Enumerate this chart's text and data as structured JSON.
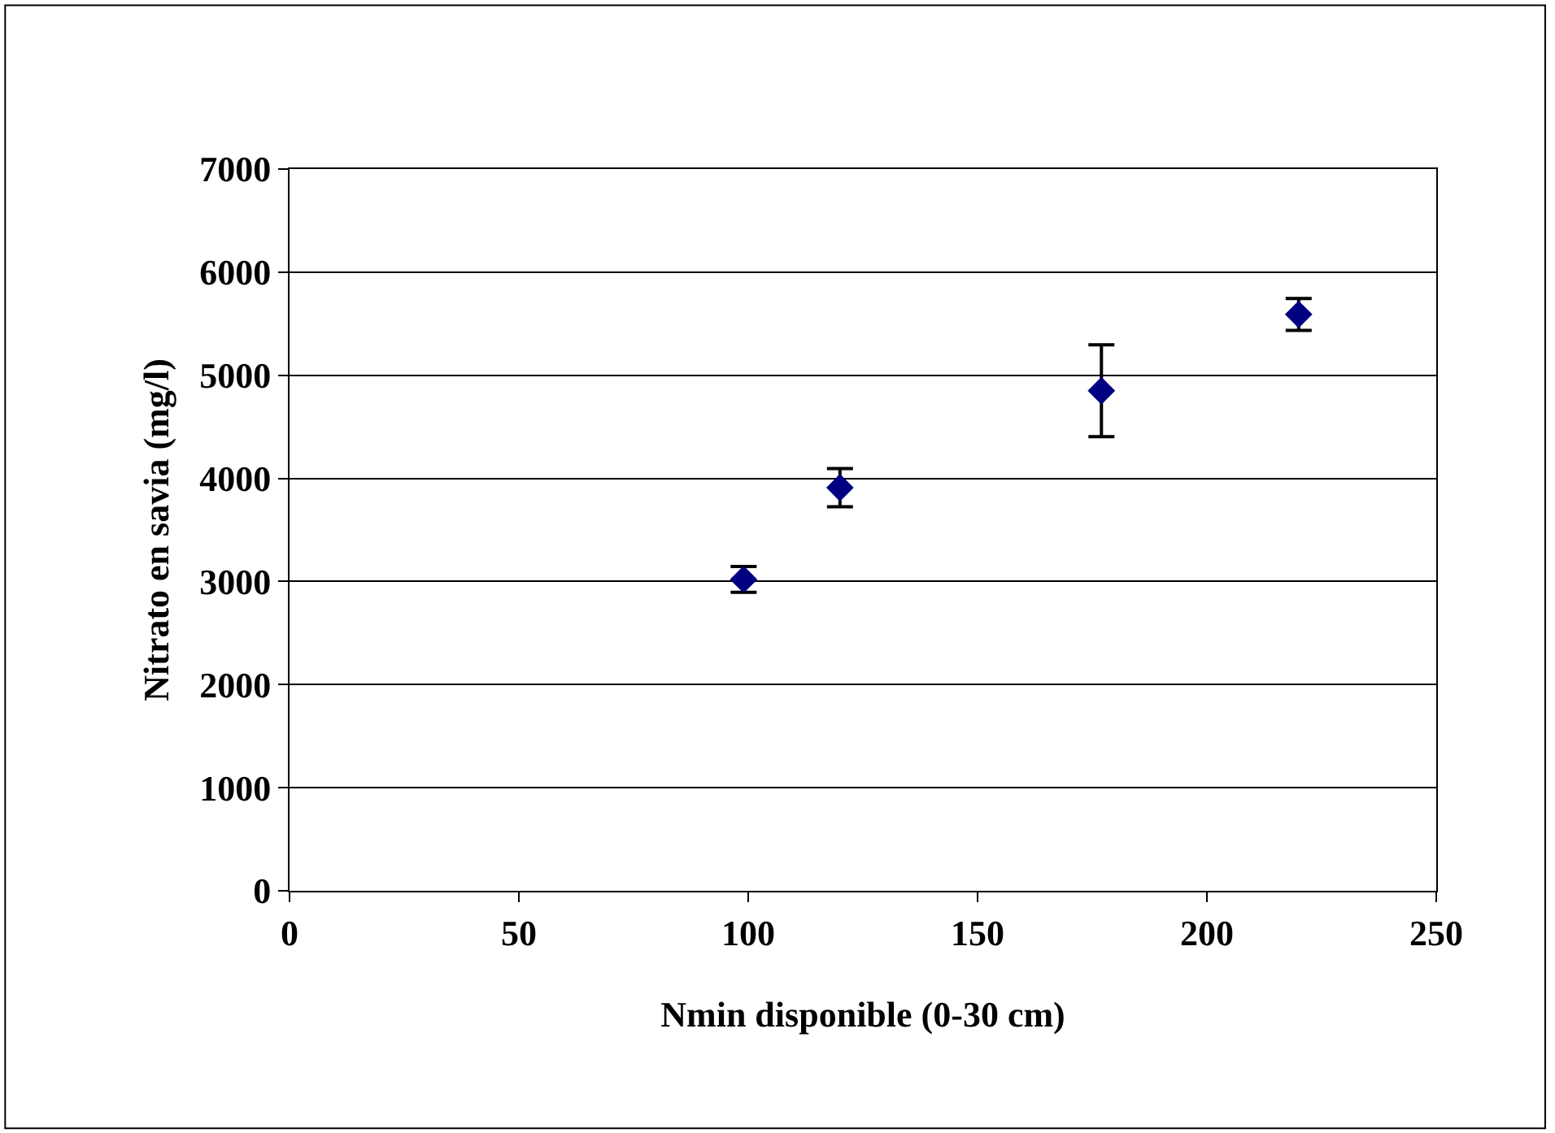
{
  "chart_data": {
    "type": "scatter",
    "xlabel": "Nmin disponible (0-30 cm)",
    "ylabel": "Nitrato en savia (mg/l)",
    "x": [
      99,
      120,
      177,
      220
    ],
    "series": [
      {
        "color": "#000080",
        "values": [
          3020,
          3910,
          4850,
          5590
        ],
        "errors": [
          125,
          185,
          445,
          155
        ]
      }
    ],
    "marker": "diamond",
    "xlim": [
      0,
      250
    ],
    "xticks": [
      0,
      50,
      100,
      150,
      200,
      250
    ],
    "ylim": [
      0,
      7000
    ],
    "yticks": [
      0,
      1000,
      2000,
      3000,
      4000,
      5000,
      6000,
      7000
    ],
    "grid": "y"
  }
}
